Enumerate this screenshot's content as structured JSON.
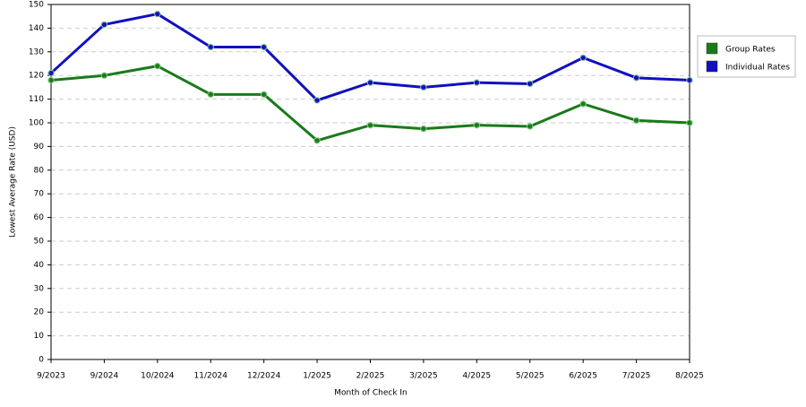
{
  "chart_data": {
    "type": "line",
    "x_label": "Month of Check In",
    "y_label": "Lowest Average Rate (USD)",
    "categories": [
      "9/2023",
      "9/2024",
      "10/2024",
      "11/2024",
      "12/2024",
      "1/2025",
      "2/2025",
      "3/2025",
      "4/2025",
      "5/2025",
      "6/2025",
      "7/2025",
      "8/2025"
    ],
    "series": [
      {
        "name": "Group Rates",
        "color": "#1a7a1a",
        "values": [
          118,
          120,
          124,
          112,
          112,
          92.5,
          99,
          97.5,
          99,
          98.5,
          108,
          101,
          100
        ]
      },
      {
        "name": "Individual Rates",
        "color": "#1010c0",
        "values": [
          121,
          141.5,
          146,
          132,
          132,
          109.5,
          117,
          115,
          117,
          116.5,
          127.5,
          119,
          118
        ]
      }
    ],
    "ylim": [
      0,
      150
    ],
    "yticks": [
      0,
      10,
      20,
      30,
      40,
      50,
      60,
      70,
      80,
      90,
      100,
      110,
      120,
      130,
      140,
      150
    ],
    "grid": true,
    "legend": "right"
  }
}
